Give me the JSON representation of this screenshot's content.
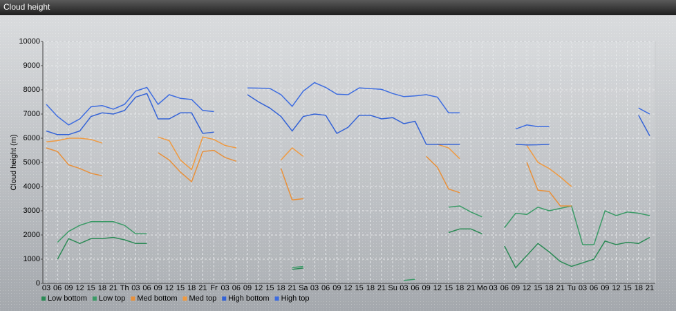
{
  "chart_data": {
    "type": "line",
    "title": "Cloud height",
    "y_label": "Cloud height (m)",
    "categories": [
      "03",
      "06",
      "09",
      "12",
      "15",
      "18",
      "21",
      "Th",
      "03",
      "06",
      "09",
      "12",
      "15",
      "18",
      "21",
      "Fr",
      "03",
      "06",
      "09",
      "12",
      "15",
      "18",
      "21",
      "Sa",
      "03",
      "06",
      "09",
      "12",
      "15",
      "18",
      "21",
      "Su",
      "03",
      "06",
      "09",
      "12",
      "15",
      "18",
      "21",
      "Mo",
      "03",
      "06",
      "09",
      "12",
      "15",
      "18",
      "21",
      "Tu",
      "03",
      "06",
      "09",
      "12",
      "15",
      "18",
      "21"
    ],
    "series": [
      {
        "name": "Low bottom",
        "color": "#2b8a55",
        "values": [
          null,
          1000,
          1850,
          1650,
          1850,
          1850,
          1900,
          1800,
          1650,
          1650,
          null,
          null,
          null,
          null,
          null,
          null,
          null,
          null,
          null,
          null,
          null,
          null,
          580,
          630,
          null,
          null,
          null,
          null,
          null,
          null,
          null,
          null,
          null,
          null,
          null,
          null,
          2100,
          2250,
          2250,
          2050,
          null,
          1550,
          650,
          1150,
          1650,
          1300,
          900,
          700,
          850,
          1000,
          1750,
          1600,
          1700,
          1650,
          1900
        ]
      },
      {
        "name": "Low top",
        "color": "#3a9a66",
        "values": [
          null,
          1700,
          2150,
          2400,
          2550,
          2550,
          2550,
          2400,
          2050,
          2050,
          null,
          null,
          null,
          null,
          null,
          null,
          null,
          null,
          null,
          null,
          null,
          null,
          650,
          700,
          null,
          null,
          null,
          null,
          null,
          null,
          null,
          null,
          120,
          170,
          null,
          null,
          3150,
          3200,
          2950,
          2750,
          null,
          2300,
          2900,
          2850,
          3150,
          3000,
          3100,
          3200,
          1600,
          1600,
          3000,
          2800,
          2950,
          2900,
          2800
        ]
      },
      {
        "name": "Med bottom",
        "color": "#e8903a",
        "values": [
          5600,
          5450,
          4900,
          4750,
          4550,
          4450,
          null,
          null,
          null,
          null,
          5400,
          5100,
          4600,
          4200,
          5450,
          5500,
          5200,
          5050,
          null,
          null,
          null,
          4750,
          3450,
          3500,
          null,
          null,
          null,
          null,
          null,
          null,
          null,
          null,
          null,
          null,
          5250,
          4800,
          3900,
          3750,
          null,
          null,
          null,
          null,
          null,
          5000,
          3850,
          3800,
          3200,
          3200,
          null,
          null,
          null,
          null,
          null,
          null,
          null
        ]
      },
      {
        "name": "Med top",
        "color": "#f09a40",
        "values": [
          5850,
          5900,
          6000,
          6000,
          5950,
          5800,
          null,
          null,
          null,
          null,
          6050,
          5900,
          5100,
          4700,
          6050,
          5950,
          5700,
          5600,
          null,
          null,
          null,
          5100,
          5600,
          5250,
          null,
          null,
          null,
          null,
          null,
          null,
          null,
          null,
          null,
          null,
          5750,
          5750,
          5600,
          5150,
          null,
          null,
          null,
          null,
          null,
          5700,
          5000,
          4750,
          4400,
          4000,
          null,
          null,
          null,
          null,
          null,
          null,
          null
        ]
      },
      {
        "name": "High bottom",
        "color": "#3362d6",
        "values": [
          6300,
          6150,
          6150,
          6300,
          6900,
          7050,
          7000,
          7150,
          7700,
          7850,
          6800,
          6800,
          7050,
          7050,
          6200,
          6250,
          null,
          null,
          7800,
          7500,
          7250,
          6900,
          6300,
          6900,
          7000,
          6950,
          6200,
          6450,
          6950,
          6950,
          6800,
          6850,
          6600,
          6700,
          5750,
          5750,
          5750,
          5750,
          null,
          null,
          null,
          null,
          5750,
          5720,
          5730,
          5750,
          null,
          null,
          null,
          null,
          null,
          null,
          null,
          6950,
          6100
        ]
      },
      {
        "name": "High top",
        "color": "#3d6ce0",
        "values": [
          7400,
          6900,
          6550,
          6800,
          7300,
          7350,
          7200,
          7400,
          7950,
          8100,
          7400,
          7800,
          7650,
          7600,
          7150,
          7100,
          null,
          null,
          8080,
          8070,
          8060,
          7800,
          7320,
          7950,
          8300,
          8100,
          7820,
          7800,
          8080,
          8050,
          8020,
          7850,
          7720,
          7750,
          7800,
          7700,
          7050,
          7050,
          null,
          null,
          null,
          null,
          6380,
          6550,
          6480,
          6480,
          null,
          null,
          null,
          null,
          null,
          null,
          null,
          7250,
          7000
        ]
      }
    ],
    "ylim": [
      0,
      10000
    ],
    "yticks": [
      0,
      1000,
      2000,
      3000,
      4000,
      5000,
      6000,
      7000,
      8000,
      9000,
      10000
    ],
    "grid": true
  }
}
